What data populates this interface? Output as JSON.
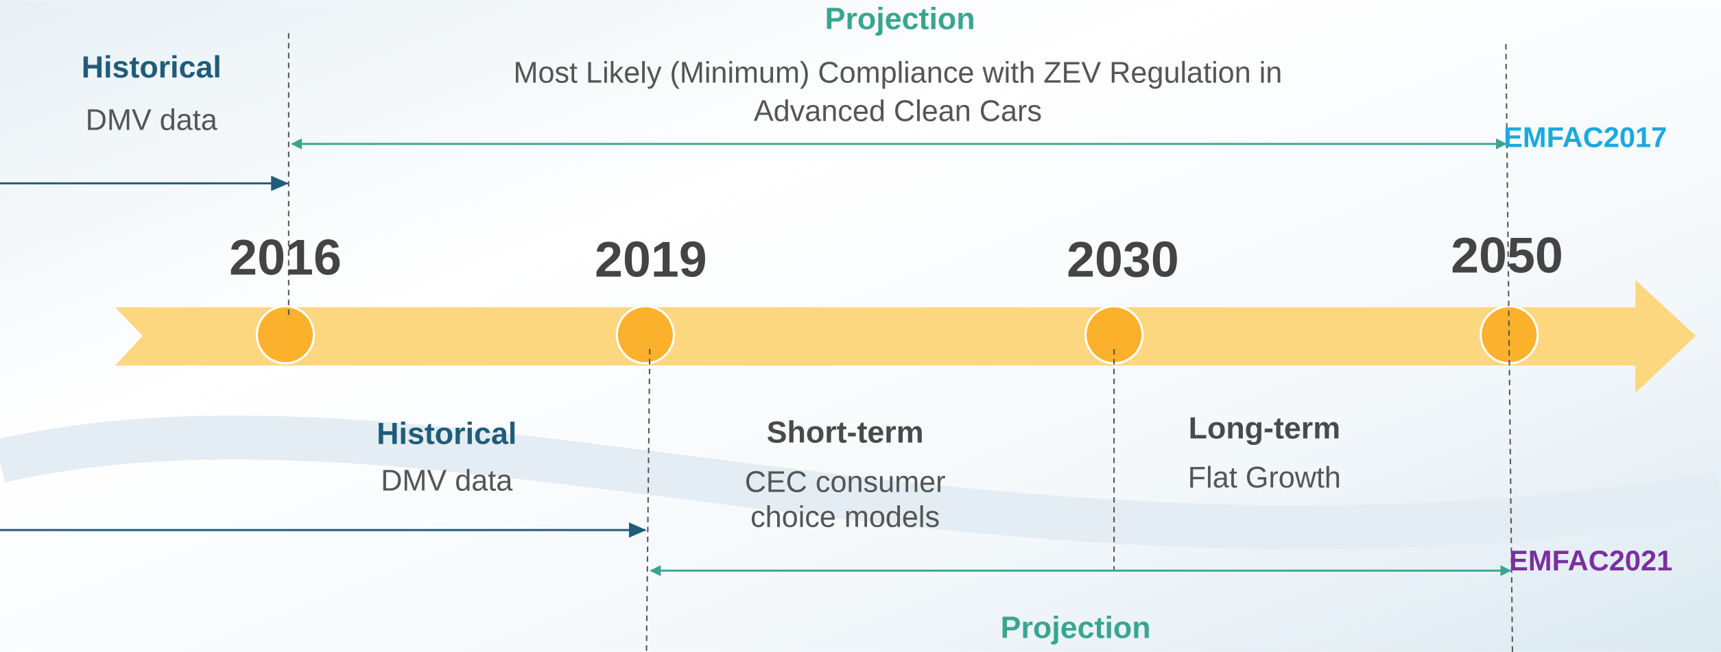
{
  "top": {
    "historical": {
      "title": "Historical",
      "text": "DMV data"
    },
    "projection": {
      "title": "Projection",
      "lines": [
        "Most Likely (Minimum) Compliance with ZEV Regulation in",
        "Advanced Clean Cars"
      ]
    },
    "model": "EMFAC2017"
  },
  "years": [
    "2016",
    "2019",
    "2030",
    "2050"
  ],
  "bottom": {
    "historical": {
      "title": "Historical",
      "text": "DMV data"
    },
    "short_term": {
      "title": "Short-term",
      "lines": [
        "CEC consumer",
        "choice models"
      ]
    },
    "long_term": {
      "title": "Long-term",
      "text": "Flat Growth"
    },
    "projection": {
      "title": "Projection"
    },
    "model": "EMFAC2021"
  }
}
